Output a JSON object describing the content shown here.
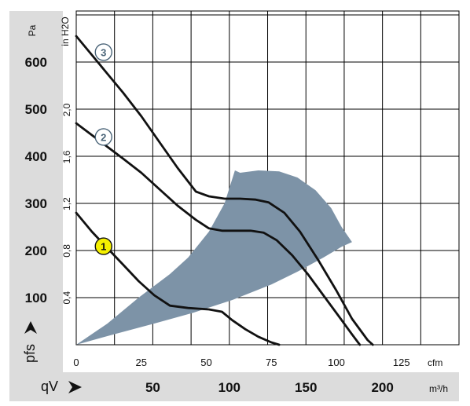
{
  "chart_data": {
    "type": "line",
    "title": "",
    "xlabel": "qV",
    "ylabel": "pfs",
    "x_unit_primary": "cfm",
    "x_unit_secondary": "m³/h",
    "y_unit_primary": "Pa",
    "y_unit_secondary": "in H2O",
    "x_lim_cfm": [
      0,
      145
    ],
    "y_lim_pa": [
      0,
      700
    ],
    "grid": true,
    "x_ticks_cfm": [
      "0",
      "25",
      "50",
      "75",
      "100",
      "125"
    ],
    "x_ticks_m3h": [
      "50",
      "100",
      "150",
      "200"
    ],
    "y_ticks_pa": [
      "100",
      "200",
      "300",
      "400",
      "500",
      "600"
    ],
    "y_ticks_inh2o": [
      "0,4",
      "0,8",
      "1,2",
      "1,6",
      "2,0"
    ],
    "colors": {
      "envelope": "#7d93a7",
      "curve": "#111111",
      "band": "#dcdcdc",
      "marker_1_fill": "#f5f000",
      "marker_fill": "#ffffff",
      "marker_stroke": "#4a6478"
    },
    "series": [
      {
        "label": "1",
        "points": [
          [
            0,
            280
          ],
          [
            6,
            240
          ],
          [
            12,
            205
          ],
          [
            18,
            170
          ],
          [
            24,
            135
          ],
          [
            30,
            105
          ],
          [
            36,
            83
          ],
          [
            43,
            78
          ],
          [
            51,
            75
          ],
          [
            56,
            70
          ],
          [
            60,
            52
          ],
          [
            65,
            33
          ],
          [
            70,
            17
          ],
          [
            75,
            5
          ],
          [
            78,
            0
          ]
        ]
      },
      {
        "label": "2",
        "points": [
          [
            0,
            470
          ],
          [
            6,
            445
          ],
          [
            12,
            420
          ],
          [
            18,
            395
          ],
          [
            25,
            365
          ],
          [
            32,
            330
          ],
          [
            39,
            295
          ],
          [
            46,
            265
          ],
          [
            51,
            247
          ],
          [
            56,
            242
          ],
          [
            62,
            242
          ],
          [
            67,
            242
          ],
          [
            72,
            238
          ],
          [
            77,
            222
          ],
          [
            83,
            190
          ],
          [
            89,
            150
          ],
          [
            95,
            105
          ],
          [
            101,
            60
          ],
          [
            106,
            22
          ],
          [
            109,
            0
          ]
        ]
      },
      {
        "label": "3",
        "points": [
          [
            0,
            655
          ],
          [
            6,
            615
          ],
          [
            12,
            575
          ],
          [
            18,
            535
          ],
          [
            25,
            485
          ],
          [
            32,
            430
          ],
          [
            39,
            375
          ],
          [
            46,
            325
          ],
          [
            51,
            315
          ],
          [
            57,
            310
          ],
          [
            63,
            310
          ],
          [
            69,
            308
          ],
          [
            74,
            302
          ],
          [
            80,
            280
          ],
          [
            86,
            240
          ],
          [
            93,
            180
          ],
          [
            100,
            115
          ],
          [
            106,
            55
          ],
          [
            112,
            10
          ],
          [
            114,
            0
          ]
        ]
      }
    ],
    "envelope_points": [
      [
        0,
        0
      ],
      [
        12,
        45
      ],
      [
        24,
        100
      ],
      [
        36,
        150
      ],
      [
        43,
        185
      ],
      [
        51,
        240
      ],
      [
        57,
        300
      ],
      [
        61,
        370
      ],
      [
        63,
        365
      ],
      [
        70,
        370
      ],
      [
        78,
        368
      ],
      [
        85,
        355
      ],
      [
        92,
        328
      ],
      [
        98,
        290
      ],
      [
        102,
        250
      ],
      [
        106,
        218
      ],
      [
        102,
        208
      ],
      [
        95,
        185
      ],
      [
        85,
        155
      ],
      [
        75,
        128
      ],
      [
        60,
        95
      ],
      [
        45,
        68
      ],
      [
        30,
        45
      ],
      [
        15,
        23
      ],
      [
        0,
        0
      ]
    ],
    "markers": [
      {
        "label": "1",
        "cfm": 10.5,
        "pa": 209
      },
      {
        "label": "2",
        "cfm": 10.5,
        "pa": 441
      },
      {
        "label": "3",
        "cfm": 10.5,
        "pa": 621
      }
    ]
  }
}
